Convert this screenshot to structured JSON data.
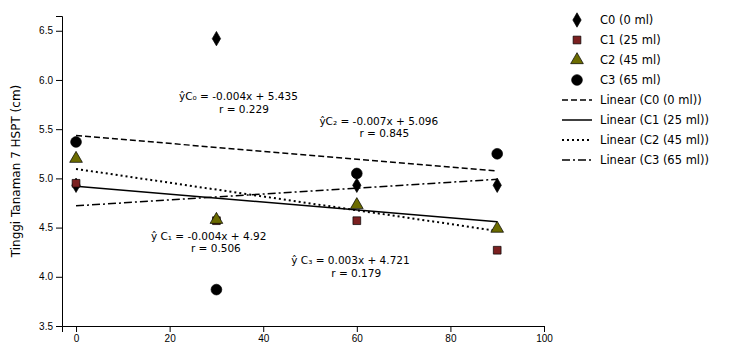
{
  "chart_data": {
    "type": "scatter",
    "y_label": "Tinggi Tanaman 7 HSPT (cm)",
    "x": [
      0,
      30,
      60,
      90
    ],
    "series": [
      {
        "name": "C0 (0 ml)",
        "type": "scatter",
        "color": "black",
        "marker": "diamond",
        "values": [
          4.93,
          6.42,
          4.93,
          4.93
        ]
      },
      {
        "name": "C1 (25 ml)",
        "type": "scatter",
        "color": "#7B2020",
        "marker": "square",
        "values": [
          4.95,
          4.57,
          4.57,
          4.27
        ]
      },
      {
        "name": "C2 (45 ml)",
        "type": "scatter",
        "color": "#6B6B00",
        "marker": "triangle",
        "values": [
          5.2,
          4.58,
          4.73,
          4.49
        ]
      },
      {
        "name": "C3 (65 ml)",
        "type": "scatter",
        "color": "black",
        "marker": "circle",
        "values": [
          5.37,
          3.87,
          5.05,
          5.25
        ]
      },
      {
        "name": "Linear (C0 (0 ml))",
        "type": "line",
        "color": "black",
        "line_style": "dashed",
        "x": [
          0,
          90
        ],
        "values": [
          5.435,
          5.075
        ]
      },
      {
        "name": "Linear (C1 (25 ml))",
        "type": "line",
        "color": "black",
        "line_style": "solid",
        "x": [
          0,
          90
        ],
        "values": [
          4.92,
          4.56
        ]
      },
      {
        "name": "Linear (C2 (45 ml))",
        "type": "line",
        "color": "black",
        "line_style": "dotted",
        "x": [
          0,
          90
        ],
        "values": [
          5.096,
          4.466
        ]
      },
      {
        "name": "Linear (C3 (65 ml))",
        "type": "line",
        "color": "black",
        "line_style": "dashdot",
        "x": [
          0,
          90
        ],
        "values": [
          4.721,
          4.991
        ]
      }
    ],
    "annotations": [
      {
        "text": "ŷC₀ = -0.004x + 5.435\nr = 0.229",
        "x": 22,
        "y": 5.77
      },
      {
        "text": "ŷC₂ = -0.007x + 5.096\nr = 0.845",
        "x": 52,
        "y": 5.52
      },
      {
        "text": "ŷ C₁ = -0.004x + 4.92\nr = 0.506",
        "x": 16,
        "y": 4.35
      },
      {
        "text": "ŷ C₃ = 0.003x + 4.721\nr = 0.179",
        "x": 46,
        "y": 4.1
      }
    ],
    "xlim": [
      -3,
      100
    ],
    "xticks": [
      0,
      20,
      40,
      60,
      80,
      100
    ],
    "ylim": [
      3.5,
      6.65
    ],
    "yticks": [
      3.5,
      {
        "value": 4,
        "label": "4.0"
      },
      4.5,
      {
        "value": 5,
        "label": "5.0"
      },
      5.5,
      {
        "value": 6,
        "label": "6.0"
      },
      6.5
    ],
    "grid": false,
    "legend": "right"
  }
}
